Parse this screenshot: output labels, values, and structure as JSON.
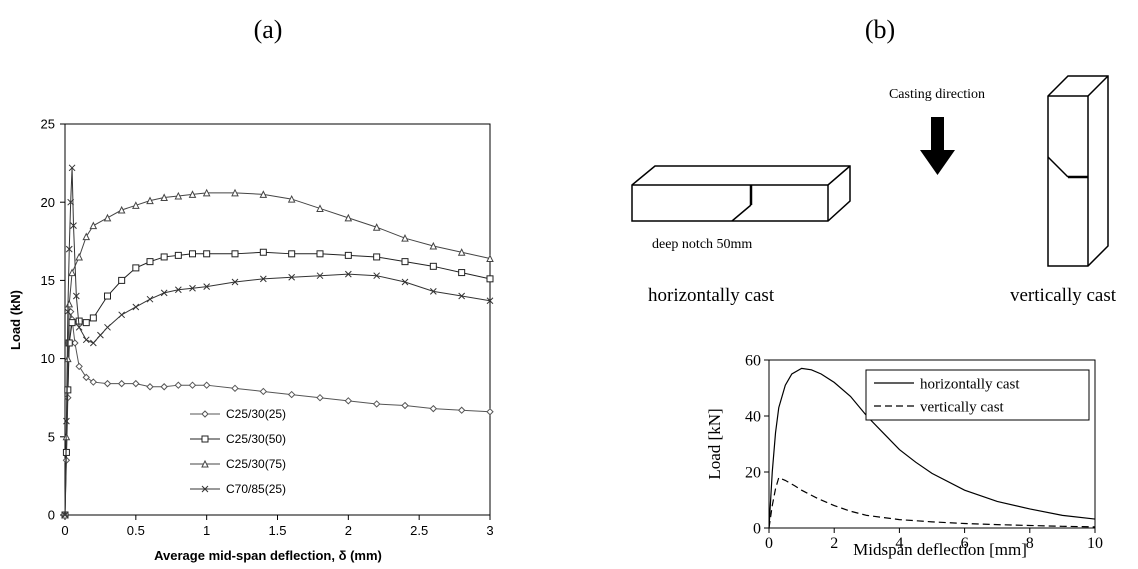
{
  "panel_a": {
    "label": "(a)",
    "chart_data": {
      "type": "line",
      "title": "",
      "xlabel": "Average mid-span deflection, δ (mm)",
      "ylabel": "Load (kN)",
      "xlim": [
        0,
        3
      ],
      "ylim": [
        0,
        25
      ],
      "xticks": [
        0,
        0.5,
        1,
        1.5,
        2,
        2.5,
        3
      ],
      "xtick_labels": [
        "0",
        "0.5",
        "1",
        "1.5",
        "2",
        "2.5",
        "3"
      ],
      "yticks": [
        0,
        5,
        10,
        15,
        20,
        25
      ],
      "ytick_labels": [
        "0",
        "5",
        "10",
        "15",
        "20",
        "25"
      ],
      "grid": false,
      "legend_position": "bottom-center",
      "series": [
        {
          "name": "C25/30(25)",
          "marker": "diamond",
          "color": "#555555",
          "x": [
            0,
            0.01,
            0.02,
            0.03,
            0.04,
            0.05,
            0.07,
            0.1,
            0.15,
            0.2,
            0.3,
            0.4,
            0.5,
            0.6,
            0.7,
            0.8,
            0.9,
            1.0,
            1.2,
            1.4,
            1.6,
            1.8,
            2.0,
            2.2,
            2.4,
            2.6,
            2.8,
            3.0
          ],
          "y": [
            0,
            3.5,
            7.5,
            11.0,
            13.0,
            12.5,
            11.0,
            9.5,
            8.8,
            8.5,
            8.4,
            8.4,
            8.4,
            8.2,
            8.2,
            8.3,
            8.3,
            8.3,
            8.1,
            7.9,
            7.7,
            7.5,
            7.3,
            7.1,
            7.0,
            6.8,
            6.7,
            6.6
          ]
        },
        {
          "name": "C25/30(50)",
          "marker": "square",
          "color": "#222222",
          "x": [
            0,
            0.01,
            0.02,
            0.03,
            0.05,
            0.1,
            0.15,
            0.2,
            0.3,
            0.4,
            0.5,
            0.6,
            0.7,
            0.8,
            0.9,
            1.0,
            1.2,
            1.4,
            1.6,
            1.8,
            2.0,
            2.2,
            2.4,
            2.6,
            2.8,
            3.0
          ],
          "y": [
            0,
            4.0,
            8.0,
            11.0,
            12.3,
            12.4,
            12.3,
            12.6,
            14.0,
            15.0,
            15.8,
            16.2,
            16.5,
            16.6,
            16.7,
            16.7,
            16.7,
            16.8,
            16.7,
            16.7,
            16.6,
            16.5,
            16.2,
            15.9,
            15.5,
            15.1
          ]
        },
        {
          "name": "C25/30(75)",
          "marker": "triangle",
          "color": "#444444",
          "x": [
            0,
            0.01,
            0.02,
            0.03,
            0.05,
            0.1,
            0.15,
            0.2,
            0.3,
            0.4,
            0.5,
            0.6,
            0.7,
            0.8,
            0.9,
            1.0,
            1.2,
            1.4,
            1.6,
            1.8,
            2.0,
            2.2,
            2.4,
            2.6,
            2.8,
            3.0
          ],
          "y": [
            0,
            5.0,
            10.0,
            13.5,
            15.5,
            16.5,
            17.8,
            18.5,
            19.0,
            19.5,
            19.8,
            20.1,
            20.3,
            20.4,
            20.5,
            20.6,
            20.6,
            20.5,
            20.2,
            19.6,
            19.0,
            18.4,
            17.7,
            17.2,
            16.8,
            16.4
          ]
        },
        {
          "name": "C70/85(25)",
          "marker": "x",
          "color": "#333333",
          "x": [
            0,
            0.01,
            0.02,
            0.03,
            0.04,
            0.05,
            0.06,
            0.08,
            0.1,
            0.15,
            0.2,
            0.25,
            0.3,
            0.4,
            0.5,
            0.6,
            0.7,
            0.8,
            0.9,
            1.0,
            1.2,
            1.4,
            1.6,
            1.8,
            2.0,
            2.2,
            2.4,
            2.6,
            2.8,
            3.0
          ],
          "y": [
            0,
            6.0,
            13.0,
            17.0,
            20.0,
            22.2,
            18.5,
            14.0,
            12.0,
            11.2,
            11.0,
            11.5,
            12.0,
            12.8,
            13.3,
            13.8,
            14.2,
            14.4,
            14.5,
            14.6,
            14.9,
            15.1,
            15.2,
            15.3,
            15.4,
            15.3,
            14.9,
            14.3,
            14.0,
            13.7
          ]
        }
      ]
    }
  },
  "panel_b": {
    "label": "(b)",
    "casting_direction_label": "Casting direction",
    "notch_label": "deep notch 50mm",
    "horizontal_caption": "horizontally cast",
    "vertical_caption": "vertically cast",
    "chart_data": {
      "type": "line",
      "title": "",
      "xlabel": "Midspan deflection [mm]",
      "ylabel": "Load [kN]",
      "xlim": [
        0,
        10
      ],
      "ylim": [
        0,
        60
      ],
      "xticks": [
        0,
        2,
        4,
        6,
        8,
        10
      ],
      "xtick_labels": [
        "0",
        "2",
        "4",
        "6",
        "8",
        "10"
      ],
      "yticks": [
        0,
        20,
        40,
        60
      ],
      "ytick_labels": [
        "0",
        "20",
        "40",
        "60"
      ],
      "grid": false,
      "legend_position": "top-right",
      "series": [
        {
          "name": "horizontally cast",
          "line_style": "solid",
          "color": "#000000",
          "x": [
            0,
            0.1,
            0.2,
            0.3,
            0.5,
            0.7,
            1.0,
            1.3,
            1.6,
            2.0,
            2.5,
            3.0,
            3.5,
            4.0,
            4.5,
            5.0,
            6.0,
            7.0,
            8.0,
            9.0,
            10.0
          ],
          "y": [
            0,
            20,
            34,
            43,
            51,
            55,
            57,
            56.5,
            55,
            52,
            47,
            40,
            34,
            28,
            23.5,
            19.5,
            13.5,
            9.5,
            6.8,
            4.5,
            3.2
          ]
        },
        {
          "name": "vertically cast",
          "line_style": "dashed",
          "color": "#000000",
          "x": [
            0,
            0.1,
            0.2,
            0.3,
            0.5,
            0.8,
            1.0,
            1.5,
            2.0,
            2.5,
            3.0,
            4.0,
            5.0,
            6.0,
            7.0,
            8.0,
            9.0,
            10.0
          ],
          "y": [
            0,
            8,
            14,
            18,
            17,
            15,
            13.5,
            10.5,
            8,
            6,
            4.5,
            3,
            2.2,
            1.6,
            1.2,
            0.9,
            0.6,
            0.4
          ]
        }
      ]
    }
  }
}
